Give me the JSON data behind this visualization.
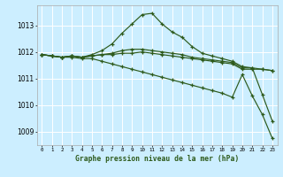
{
  "background_color": "#cceeff",
  "grid_color": "#ffffff",
  "line_color": "#2d5a1b",
  "title": "Graphe pression niveau de la mer (hPa)",
  "ylim": [
    1008.5,
    1013.75
  ],
  "xlim": [
    -0.5,
    23.5
  ],
  "yticks": [
    1009,
    1010,
    1011,
    1012,
    1013
  ],
  "xticks": [
    0,
    1,
    2,
    3,
    4,
    5,
    6,
    7,
    8,
    9,
    10,
    11,
    12,
    13,
    14,
    15,
    16,
    17,
    18,
    19,
    20,
    21,
    22,
    23
  ],
  "series": [
    [
      1011.9,
      1011.85,
      1011.8,
      1011.85,
      1011.8,
      1011.9,
      1012.05,
      1012.3,
      1012.7,
      1013.05,
      1013.4,
      1013.45,
      1013.05,
      1012.75,
      1012.55,
      1012.2,
      1011.95,
      1011.85,
      1011.75,
      1011.65,
      1011.45,
      1011.4,
      1010.4,
      1009.4
    ],
    [
      1011.9,
      1011.85,
      1011.8,
      1011.85,
      1011.8,
      1011.85,
      1011.9,
      1011.9,
      1011.95,
      1011.95,
      1012.0,
      1011.95,
      1011.9,
      1011.85,
      1011.8,
      1011.75,
      1011.7,
      1011.65,
      1011.6,
      1011.55,
      1011.35,
      1011.35,
      1011.35,
      1011.3
    ],
    [
      1011.9,
      1011.85,
      1011.8,
      1011.85,
      1011.8,
      1011.85,
      1011.9,
      1011.95,
      1012.05,
      1012.1,
      1012.1,
      1012.05,
      1012.0,
      1011.95,
      1011.9,
      1011.8,
      1011.75,
      1011.7,
      1011.65,
      1011.6,
      1011.4,
      1011.4,
      1011.35,
      1011.3
    ],
    [
      1011.9,
      1011.85,
      1011.8,
      1011.8,
      1011.75,
      1011.75,
      1011.65,
      1011.55,
      1011.45,
      1011.35,
      1011.25,
      1011.15,
      1011.05,
      1010.95,
      1010.85,
      1010.75,
      1010.65,
      1010.55,
      1010.45,
      1010.3,
      1011.15,
      1010.35,
      1009.65,
      1008.75
    ]
  ]
}
